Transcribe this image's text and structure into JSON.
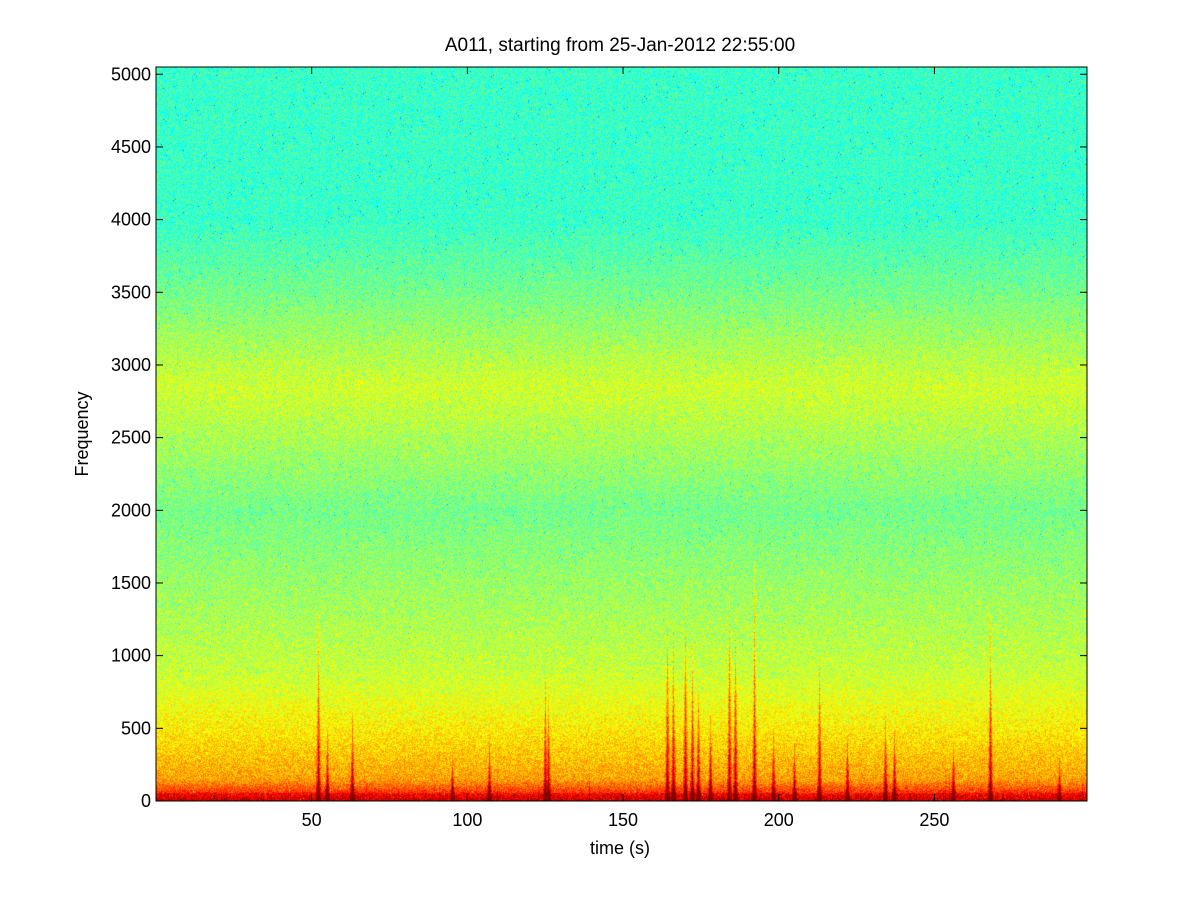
{
  "chart_data": {
    "type": "heatmap",
    "title": "A011, starting from 25-Jan-2012 22:55:00",
    "xlabel": "time (s)",
    "ylabel": "Frequency",
    "xlim": [
      0,
      299
    ],
    "ylim": [
      0,
      5050
    ],
    "x_ticks": [
      50,
      100,
      150,
      200,
      250
    ],
    "y_ticks": [
      0,
      500,
      1000,
      1500,
      2000,
      2500,
      3000,
      3500,
      4000,
      4500,
      5000
    ],
    "colormap": "jet",
    "grid": false,
    "legend": "none",
    "frequency_profile": [
      {
        "frequency": 0,
        "level": "red"
      },
      {
        "frequency": 150,
        "level": "orange-yellow"
      },
      {
        "frequency": 500,
        "level": "yellow"
      },
      {
        "frequency": 900,
        "level": "green-yellow"
      },
      {
        "frequency": 2000,
        "level": "green"
      },
      {
        "frequency": 2850,
        "level": "yellow-green"
      },
      {
        "frequency": 3500,
        "level": "green"
      },
      {
        "frequency": 4000,
        "level": "cyan-green"
      },
      {
        "frequency": 5000,
        "level": "cyan-green"
      }
    ],
    "bursts": [
      {
        "t": 52,
        "fmax": 1300
      },
      {
        "t": 55,
        "fmax": 500
      },
      {
        "t": 63,
        "fmax": 600
      },
      {
        "t": 95,
        "fmax": 300
      },
      {
        "t": 107,
        "fmax": 400
      },
      {
        "t": 125,
        "fmax": 850
      },
      {
        "t": 126,
        "fmax": 700
      },
      {
        "t": 164,
        "fmax": 1400
      },
      {
        "t": 166,
        "fmax": 1200
      },
      {
        "t": 170,
        "fmax": 1500
      },
      {
        "t": 172,
        "fmax": 1100
      },
      {
        "t": 174,
        "fmax": 800
      },
      {
        "t": 178,
        "fmax": 600
      },
      {
        "t": 184,
        "fmax": 1550
      },
      {
        "t": 186,
        "fmax": 1300
      },
      {
        "t": 192,
        "fmax": 1650
      },
      {
        "t": 198,
        "fmax": 500
      },
      {
        "t": 205,
        "fmax": 400
      },
      {
        "t": 213,
        "fmax": 1000
      },
      {
        "t": 222,
        "fmax": 450
      },
      {
        "t": 234,
        "fmax": 600
      },
      {
        "t": 237,
        "fmax": 500
      },
      {
        "t": 256,
        "fmax": 400
      },
      {
        "t": 268,
        "fmax": 1300
      },
      {
        "t": 290,
        "fmax": 300
      }
    ]
  }
}
